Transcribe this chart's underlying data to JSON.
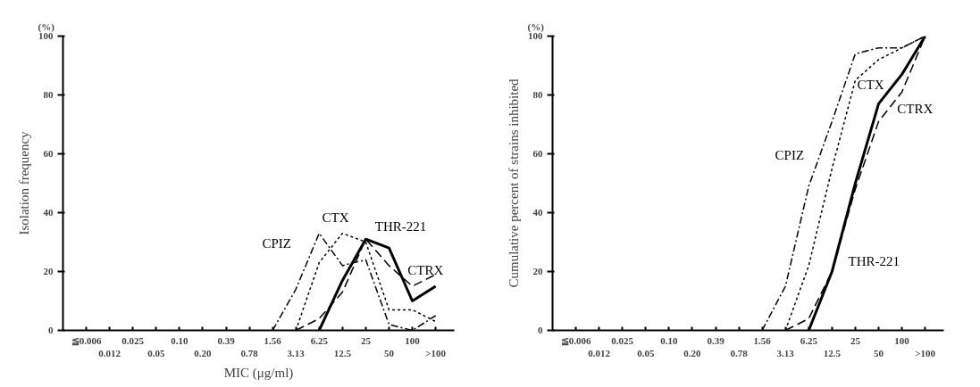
{
  "chart_data": [
    {
      "type": "line",
      "categories": [
        "≦0.006",
        "0.012",
        "0.025",
        "0.05",
        "0.10",
        "0.20",
        "0.39",
        "0.78",
        "1.56",
        "3.13",
        "6.25",
        "12.5",
        "25",
        "50",
        "100",
        ">100"
      ],
      "ylabel": "Isolation frequency",
      "xlabel": "MIC (μg/ml)",
      "annotations": [
        "(%)"
      ],
      "ylim": [
        0,
        100
      ],
      "yticks": [
        0,
        20,
        40,
        60,
        80,
        100
      ],
      "grid": false,
      "legend": false,
      "marker": "none",
      "series": [
        {
          "name": "CPIZ",
          "color": "#000000",
          "line_style": "dashdot",
          "values": [
            null,
            null,
            null,
            null,
            null,
            null,
            null,
            null,
            0,
            14,
            33,
            22,
            24,
            2,
            0,
            5
          ]
        },
        {
          "name": "CTX",
          "color": "#000000",
          "line_style": "dotted",
          "values": [
            null,
            null,
            null,
            null,
            null,
            null,
            null,
            null,
            null,
            0,
            23,
            33,
            30,
            7,
            7,
            3
          ]
        },
        {
          "name": "THR-221",
          "color": "#000000",
          "line_style": "solid",
          "values": [
            null,
            null,
            null,
            null,
            null,
            null,
            null,
            null,
            null,
            null,
            0,
            17,
            31,
            28,
            10,
            15
          ]
        },
        {
          "name": "CTRX",
          "color": "#000000",
          "line_style": "dashed",
          "values": [
            null,
            null,
            null,
            null,
            null,
            null,
            null,
            null,
            null,
            0,
            4,
            13,
            31,
            22,
            15,
            19
          ]
        }
      ]
    },
    {
      "type": "line",
      "categories": [
        "≦0.006",
        "0.012",
        "0.025",
        "0.05",
        "0.10",
        "0.20",
        "0.39",
        "0.78",
        "1.56",
        "3.13",
        "6.25",
        "12.5",
        "25",
        "50",
        "100",
        ">100"
      ],
      "ylabel": "Cumulative percent of strains inhibited",
      "annotations": [
        "(%)"
      ],
      "ylim": [
        0,
        100
      ],
      "yticks": [
        0,
        20,
        40,
        60,
        80,
        100
      ],
      "grid": false,
      "legend": false,
      "marker": "none",
      "series": [
        {
          "name": "CPIZ",
          "color": "#000000",
          "line_style": "dashdot",
          "values": [
            null,
            null,
            null,
            null,
            null,
            null,
            null,
            null,
            0,
            15,
            49,
            71,
            94,
            96,
            96,
            100
          ]
        },
        {
          "name": "CTX",
          "color": "#000000",
          "line_style": "dotted",
          "values": [
            null,
            null,
            null,
            null,
            null,
            null,
            null,
            null,
            null,
            0,
            22,
            55,
            85,
            92,
            96,
            100
          ]
        },
        {
          "name": "THR-221",
          "color": "#000000",
          "line_style": "solid",
          "values": [
            null,
            null,
            null,
            null,
            null,
            null,
            null,
            null,
            null,
            null,
            0,
            20,
            50,
            77,
            87,
            100
          ]
        },
        {
          "name": "CTRX",
          "color": "#000000",
          "line_style": "dashed",
          "values": [
            null,
            null,
            null,
            null,
            null,
            null,
            null,
            null,
            null,
            0,
            4,
            20,
            48,
            71,
            81,
            100
          ]
        }
      ]
    }
  ]
}
